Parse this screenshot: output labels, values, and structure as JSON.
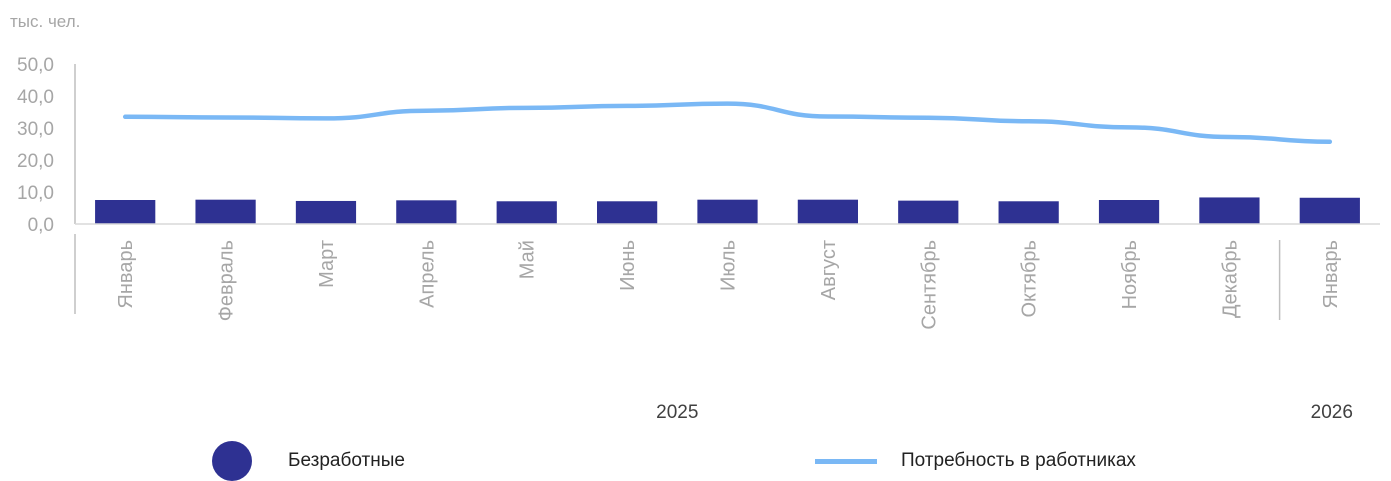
{
  "chart_data": {
    "type": "bar",
    "unit_label": "тыс. чел.",
    "categories": [
      "Январь",
      "Февраль",
      "Март",
      "Апрель",
      "Май",
      "Июнь",
      "Июль",
      "Август",
      "Сентябрь",
      "Октябрь",
      "Ноябрь",
      "Декабрь",
      "Январь"
    ],
    "year_groups": [
      {
        "label": "2025",
        "start": 0,
        "end": 11
      },
      {
        "label": "2026",
        "start": 12,
        "end": 12
      }
    ],
    "y_ticks": [
      "0,0",
      "10,0",
      "20,0",
      "30,0",
      "40,0",
      "50,0"
    ],
    "ylim": [
      0,
      50
    ],
    "series": [
      {
        "name": "Безработные",
        "type": "bar",
        "color": "#2e3192",
        "values": [
          7.5,
          7.6,
          7.2,
          7.4,
          7.1,
          7.1,
          7.6,
          7.6,
          7.3,
          7.1,
          7.5,
          8.3,
          8.2
        ]
      },
      {
        "name": "Потребность в работниках",
        "type": "line",
        "color": "#7ab8f5",
        "values": [
          33.5,
          33.3,
          33.0,
          35.4,
          36.3,
          36.9,
          37.6,
          33.6,
          33.2,
          32.1,
          30.2,
          27.2,
          25.7
        ]
      }
    ],
    "legend_position": "bottom",
    "grid": false
  }
}
